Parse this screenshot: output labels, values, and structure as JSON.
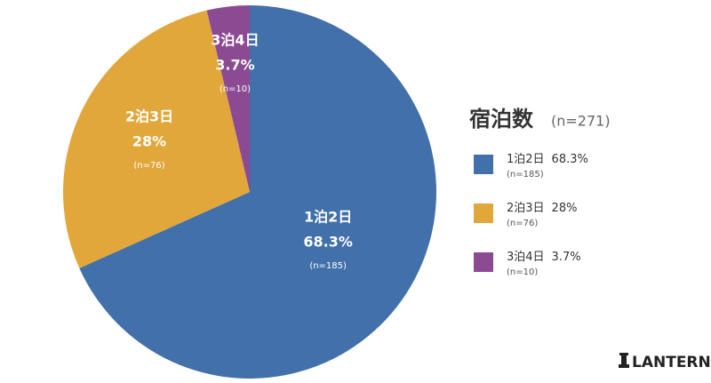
{
  "chart_data": {
    "type": "pie",
    "title": "宿泊数",
    "subtitle": "(n=271)",
    "categories": [
      "1泊2日",
      "2泊3日",
      "3泊4日"
    ],
    "values": [
      68.3,
      28,
      3.7
    ],
    "value_labels": [
      "68.3%",
      "28%",
      "3.7%"
    ],
    "count_labels": [
      "(n=185)",
      "(n=76)",
      "(n=10)"
    ],
    "colors": [
      "#4170aa",
      "#e1a73a",
      "#8c4a93"
    ],
    "legend": "right"
  },
  "brand": "LANTERN"
}
